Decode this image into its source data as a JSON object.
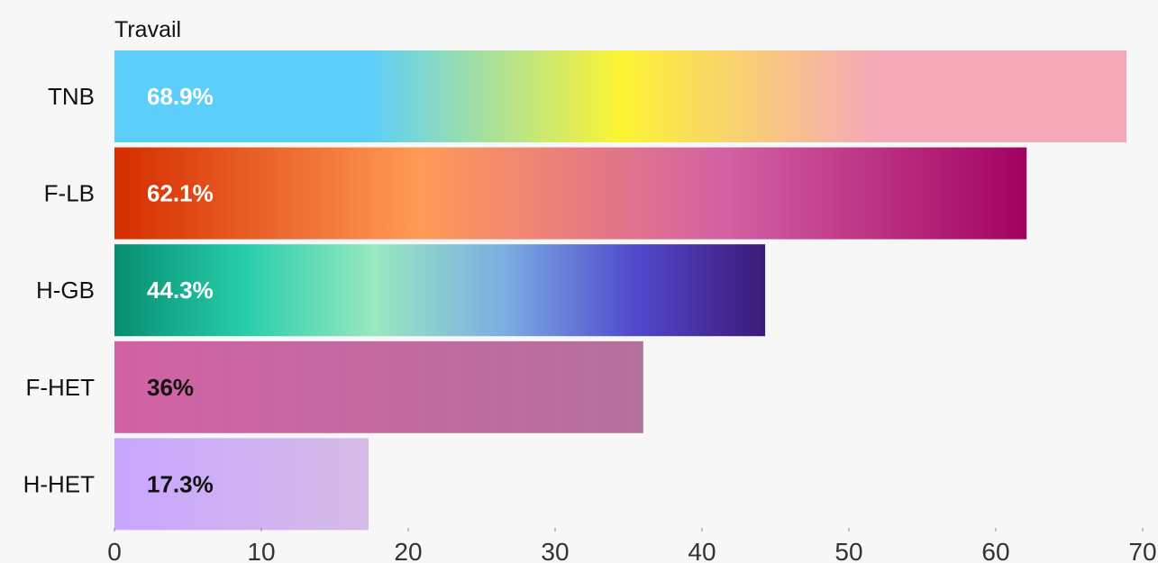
{
  "chart_data": {
    "type": "bar",
    "orientation": "horizontal",
    "title": "Travail",
    "categories": [
      "TNB",
      "F-LB",
      "H-GB",
      "F-HET",
      "H-HET"
    ],
    "values": [
      68.9,
      62.1,
      44.3,
      36,
      17.3
    ],
    "value_labels": [
      "68.9%",
      "62.1%",
      "44.3%",
      "36%",
      "17.3%"
    ],
    "xlim": [
      0,
      70
    ],
    "xticks": [
      0,
      10,
      20,
      30,
      40,
      50,
      60,
      70
    ],
    "grid": false,
    "bar_gradients": [
      [
        "#5bcefa",
        "#5bcefa",
        "#fcf434",
        "#f5a9b8",
        "#f5a9b8"
      ],
      [
        "#d52d00",
        "#ff9a56",
        "#d362a4",
        "#a30262"
      ],
      [
        "#078d70",
        "#26ceaa",
        "#98e8c1",
        "#7bade2",
        "#5049cc",
        "#3d1a78"
      ],
      [
        "#d162a4",
        "#b5719d"
      ],
      [
        "#c8a6ff",
        "#d5bce6"
      ]
    ],
    "label_colors": [
      "#ffffff",
      "#ffffff",
      "#ffffff",
      "#111111",
      "#111111"
    ],
    "background": "#f7f7f7"
  }
}
